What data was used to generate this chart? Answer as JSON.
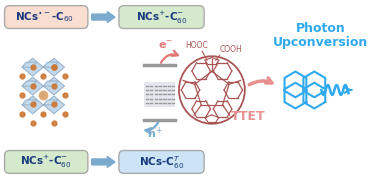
{
  "bg_color": "#ffffff",
  "top_box1_text_main": "NCs",
  "top_box1_sup": "•−",
  "top_box1_sub": "60",
  "top_box1_bg": "#f9ddd0",
  "top_box2_bg": "#d5eacc",
  "top_box2_text": "NCs",
  "bot_box1_bg": "#d5eacc",
  "bot_box2_bg": "#cce4f5",
  "arrow_color": "#7aaace",
  "eminus_color": "#e07878",
  "hplus_color": "#7aaace",
  "ttet_color": "#e89090",
  "photon_color": "#30aaee",
  "label_color": "#1a3a7e",
  "energy_line_color": "#999999",
  "dot_color_light": "#aaaacc",
  "dot_color_dark": "#6666aa",
  "nc_orange": "#cc7733",
  "nc_blue": "#7799bb",
  "nc_lightblue": "#aac8e0",
  "fullerene_color": "#aa5555",
  "perylene_color": "#30aaee"
}
